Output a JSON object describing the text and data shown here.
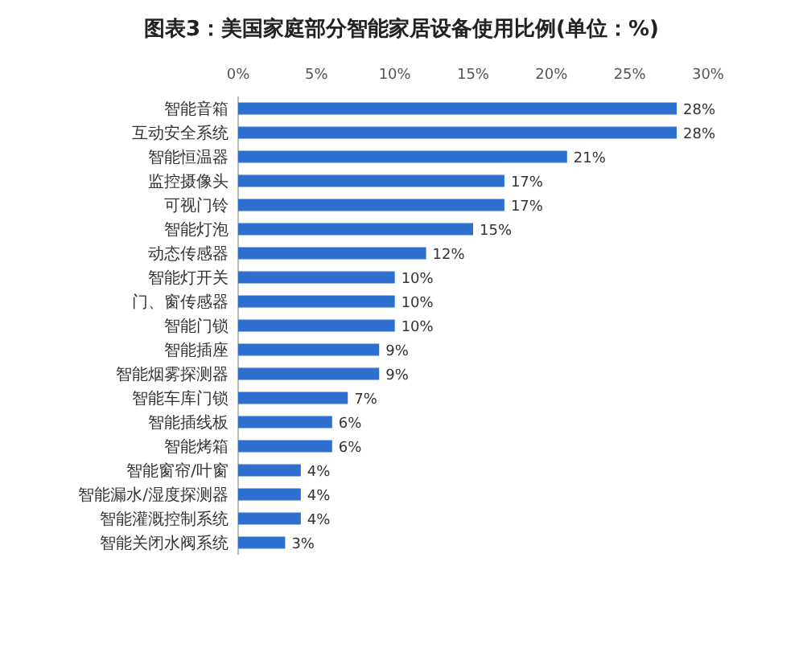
{
  "chart_data": {
    "type": "bar",
    "orientation": "horizontal",
    "title": "图表3：美国家庭部分智能家居设备使用比例(单位：%)",
    "categories": [
      "智能音箱",
      "互动安全系统",
      "智能恒温器",
      "监控摄像头",
      "可视门铃",
      "智能灯泡",
      "动态传感器",
      "智能灯开关",
      "门、窗传感器",
      "智能门锁",
      "智能插座",
      "智能烟雾探测器",
      "智能车库门锁",
      "智能插线板",
      "智能烤箱",
      "智能窗帘/叶窗",
      "智能漏水/湿度探测器",
      "智能灌溉控制系统",
      "智能关闭水阀系统"
    ],
    "values": [
      28,
      28,
      21,
      17,
      17,
      15,
      12,
      10,
      10,
      10,
      9,
      9,
      7,
      6,
      6,
      4,
      4,
      4,
      3
    ],
    "value_labels": [
      "28%",
      "28%",
      "21%",
      "17%",
      "17%",
      "15%",
      "12%",
      "10%",
      "10%",
      "10%",
      "9%",
      "9%",
      "7%",
      "6%",
      "6%",
      "4%",
      "4%",
      "4%",
      "3%"
    ],
    "color": "#2f6fd0",
    "xlim": [
      0,
      30
    ],
    "xticks": [
      {
        "value": 0,
        "label": "0%"
      },
      {
        "value": 5,
        "label": "5%"
      },
      {
        "value": 10,
        "label": "10%"
      },
      {
        "value": 15,
        "label": "15%"
      },
      {
        "value": 20,
        "label": "20%"
      },
      {
        "value": 25,
        "label": "25%"
      },
      {
        "value": 30,
        "label": "30%"
      }
    ],
    "grid": false
  }
}
